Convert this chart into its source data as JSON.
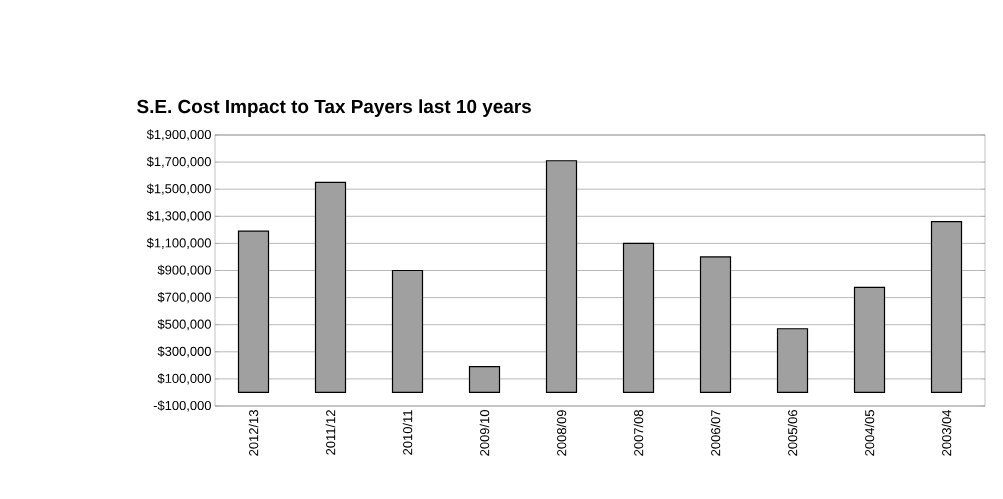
{
  "chart_data": {
    "type": "bar",
    "title": "S.E.  Cost Impact to Tax Payers last 10 years",
    "categories": [
      "2012/13",
      "2011/12",
      "2010/11",
      "2009/10",
      "2008/09",
      "2007/08",
      "2006/07",
      "2005/06",
      "2004/05",
      "2003/04"
    ],
    "values": [
      1190000,
      1550000,
      900000,
      190000,
      1710000,
      1100000,
      1000000,
      470000,
      775000,
      1260000
    ],
    "color": "#a0a0a0",
    "ylim": [
      -100000,
      1900000
    ],
    "yticks": [
      {
        "value": -100000,
        "label": "-$100,000"
      },
      {
        "value": 100000,
        "label": "$100,000"
      },
      {
        "value": 300000,
        "label": "$300,000"
      },
      {
        "value": 500000,
        "label": "$500,000"
      },
      {
        "value": 700000,
        "label": "$700,000"
      },
      {
        "value": 900000,
        "label": "$900,000"
      },
      {
        "value": 1100000,
        "label": "$1,100,000"
      },
      {
        "value": 1300000,
        "label": "$1,300,000"
      },
      {
        "value": 1500000,
        "label": "$1,500,000"
      },
      {
        "value": 1700000,
        "label": "$1,700,000"
      },
      {
        "value": 1900000,
        "label": "$1,900,000"
      }
    ],
    "grid": "y"
  }
}
